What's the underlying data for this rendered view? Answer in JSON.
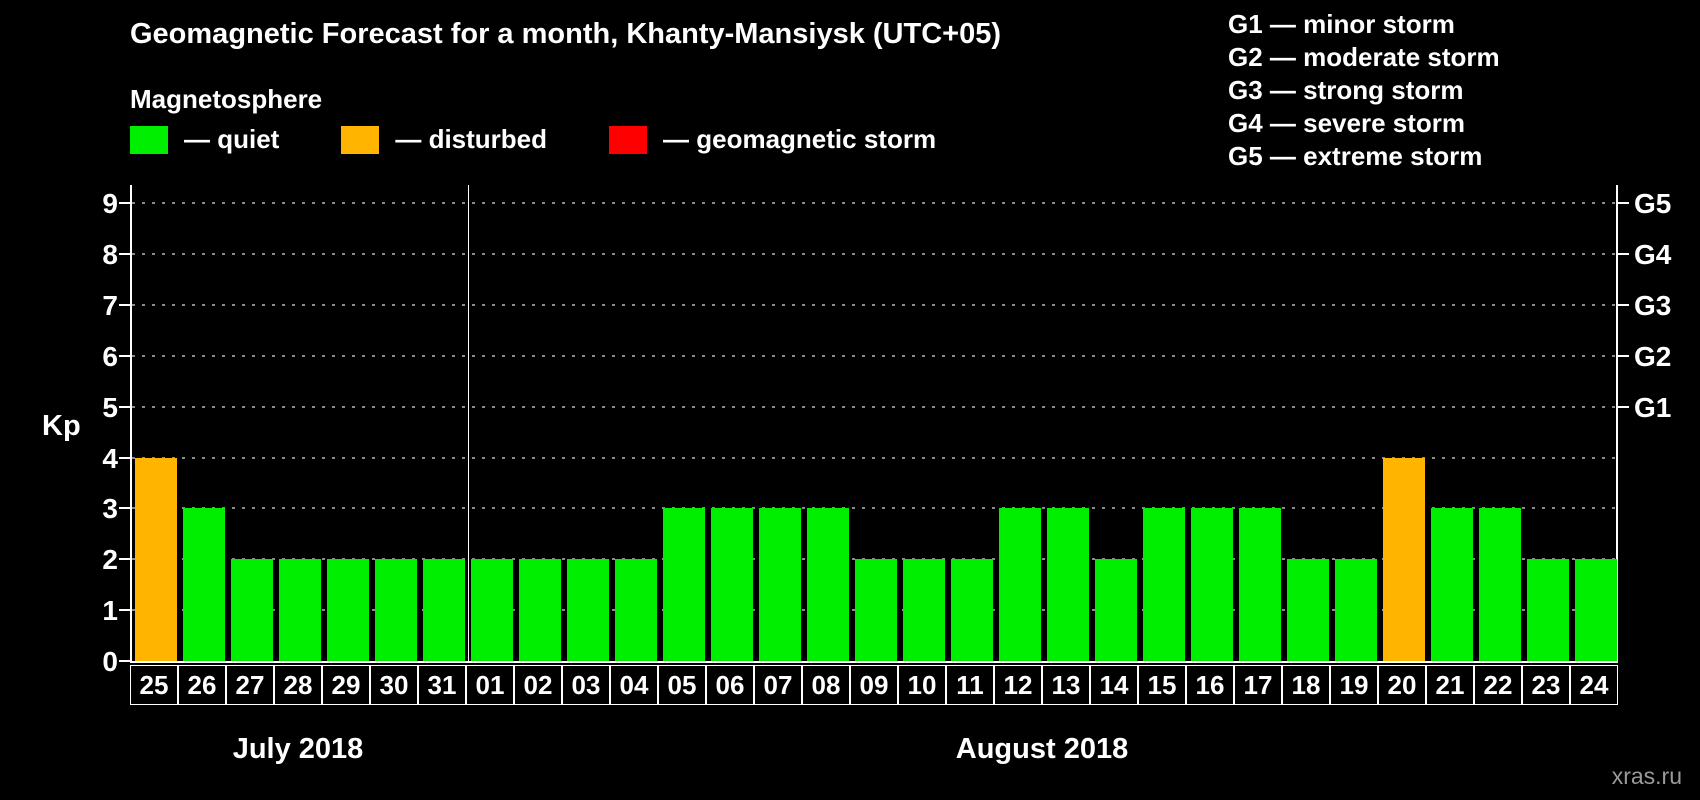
{
  "title": "Geomagnetic Forecast for a month, Khanty-Mansiysk (UTC+05)",
  "subtitle": "Magnetosphere",
  "ylabel": "Kp",
  "watermark": "xras.ru",
  "colors": {
    "quiet": "#00ee00",
    "disturbed": "#ffb400",
    "storm": "#ff0000",
    "background": "#000000",
    "axis": "#ffffff",
    "grid": "#8a8a8a"
  },
  "legend": [
    {
      "key": "quiet",
      "label": "— quiet"
    },
    {
      "key": "disturbed",
      "label": "— disturbed"
    },
    {
      "key": "storm",
      "label": "— geomagnetic storm"
    }
  ],
  "storm_scale": [
    "G1 — minor storm",
    "G2 — moderate storm",
    "G3 — strong storm",
    "G4 — severe storm",
    "G5 — extreme storm"
  ],
  "chart_data": {
    "type": "bar",
    "title": "Geomagnetic Forecast for a month, Khanty-Mansiysk (UTC+05)",
    "ylabel": "Kp",
    "ylim": [
      0,
      9.4
    ],
    "yticks": [
      0,
      1,
      2,
      3,
      4,
      5,
      6,
      7,
      8,
      9
    ],
    "grid": true,
    "legend_position": "top",
    "right_axis_labels": [
      {
        "label": "G1",
        "value": 5
      },
      {
        "label": "G2",
        "value": 6
      },
      {
        "label": "G3",
        "value": 7
      },
      {
        "label": "G4",
        "value": 8
      },
      {
        "label": "G5",
        "value": 9
      }
    ],
    "categories": [
      "25",
      "26",
      "27",
      "28",
      "29",
      "30",
      "31",
      "01",
      "02",
      "03",
      "04",
      "05",
      "06",
      "07",
      "08",
      "09",
      "10",
      "11",
      "12",
      "13",
      "14",
      "15",
      "16",
      "17",
      "18",
      "19",
      "20",
      "21",
      "22",
      "23",
      "24"
    ],
    "values": [
      4,
      3,
      2,
      2,
      2,
      2,
      2,
      2,
      2,
      2,
      2,
      3,
      3,
      3,
      3,
      2,
      2,
      2,
      3,
      3,
      2,
      3,
      3,
      3,
      2,
      2,
      4,
      3,
      3,
      2,
      2
    ],
    "thresholds": {
      "disturbed_min": 4,
      "storm_min": 5
    },
    "months": [
      {
        "label": "July 2018",
        "days": 7
      },
      {
        "label": "August 2018",
        "days": 24
      }
    ]
  }
}
